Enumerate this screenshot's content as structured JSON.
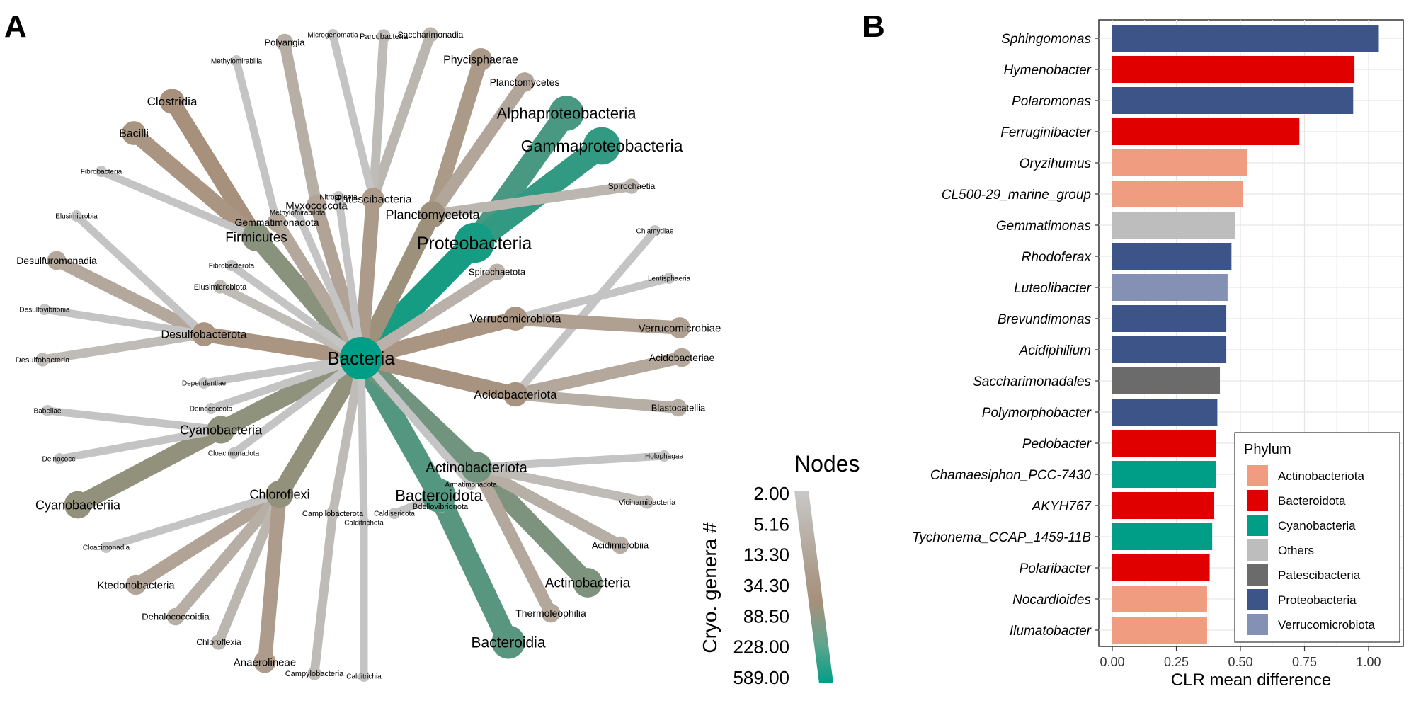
{
  "panels": {
    "a": "A",
    "b": "B"
  },
  "colors": {
    "low": "#bdbdbd",
    "mid": "#a6907b",
    "high": "#009e86",
    "node_fill": "#a59481"
  },
  "network": {
    "root": "Bacteria",
    "legend_title": "Nodes",
    "legend_axis_label": "Cryo. genera #",
    "legend_ticks": [
      "2.00",
      "5.16",
      "13.30",
      "34.30",
      "88.50",
      "228.00",
      "589.00"
    ],
    "phyla": [
      {
        "name": "Proteobacteria",
        "genera": 380,
        "children": [
          {
            "name": "Alphaproteobacteria",
            "genera": 150
          },
          {
            "name": "Gammaproteobacteria",
            "genera": 230
          }
        ]
      },
      {
        "name": "Bacteroidota",
        "genera": 120,
        "children": [
          {
            "name": "Bacteroidia",
            "genera": 110
          },
          {
            "name": "Bdellovibrionota",
            "genera": 3
          },
          {
            "name": "Caldisericota",
            "genera": 2
          }
        ]
      },
      {
        "name": "Actinobacteriota",
        "genera": 70,
        "children": [
          {
            "name": "Actinobacteria",
            "genera": 55
          },
          {
            "name": "Acidimicrobiia",
            "genera": 6
          },
          {
            "name": "Thermoleophilia",
            "genera": 8
          },
          {
            "name": "Vicinamibacteria",
            "genera": 3
          },
          {
            "name": "Holophagae",
            "genera": 2
          }
        ]
      },
      {
        "name": "Firmicutes",
        "genera": 45,
        "children": [
          {
            "name": "Clostridia",
            "genera": 24
          },
          {
            "name": "Bacilli",
            "genera": 20
          },
          {
            "name": "Fibrobacteria",
            "genera": 2
          }
        ]
      },
      {
        "name": "Cyanobacteria",
        "genera": 40,
        "children": [
          {
            "name": "Cyanobacteriia",
            "genera": 38
          },
          {
            "name": "Deinococci",
            "genera": 2
          },
          {
            "name": "Babeliae",
            "genera": 2
          }
        ]
      },
      {
        "name": "Chloroflexi",
        "genera": 38,
        "children": [
          {
            "name": "Ktedonobacteria",
            "genera": 10
          },
          {
            "name": "Dehalococcoidia",
            "genera": 6
          },
          {
            "name": "Chloroflexia",
            "genera": 4
          },
          {
            "name": "Anaerolineae",
            "genera": 14
          },
          {
            "name": "Cloacimonadia",
            "genera": 2
          }
        ]
      },
      {
        "name": "Planctomycetota",
        "genera": 30,
        "children": [
          {
            "name": "Phycisphaerae",
            "genera": 16
          },
          {
            "name": "Planctomycetes",
            "genera": 9
          },
          {
            "name": "Spirochaetia",
            "genera": 4
          }
        ]
      },
      {
        "name": "Desulfobacterota",
        "genera": 20,
        "children": [
          {
            "name": "Desulfuromonadia",
            "genera": 8
          },
          {
            "name": "Desulfovibrionia",
            "genera": 2
          },
          {
            "name": "Desulfobacteria",
            "genera": 3
          },
          {
            "name": "Elusimicrobia",
            "genera": 2
          }
        ]
      },
      {
        "name": "Acidobacteriota",
        "genera": 22,
        "children": [
          {
            "name": "Acidobacteriae",
            "genera": 8
          },
          {
            "name": "Blastocatellia",
            "genera": 6
          },
          {
            "name": "Chlamydiae",
            "genera": 2
          }
        ]
      },
      {
        "name": "Verrucomicrobiota",
        "genera": 20,
        "children": [
          {
            "name": "Verrucomicrobiae",
            "genera": 12
          },
          {
            "name": "Lentisphaeria",
            "genera": 2
          }
        ]
      },
      {
        "name": "Patescibacteria",
        "genera": 15,
        "children": [
          {
            "name": "Saccharimonadia",
            "genera": 4
          },
          {
            "name": "Parcubacteria",
            "genera": 3
          },
          {
            "name": "Microgenomatia",
            "genera": 2
          }
        ]
      },
      {
        "name": "Myxococcota",
        "genera": 10,
        "children": [
          {
            "name": "Polyangia",
            "genera": 6
          }
        ]
      },
      {
        "name": "Gemmatimonadota",
        "genera": 8,
        "children": [
          {
            "name": "Methylomirabilia",
            "genera": 2
          }
        ]
      },
      {
        "name": "Spirochaetota",
        "genera": 5,
        "children": []
      },
      {
        "name": "Elusimicrobiota",
        "genera": 3,
        "children": []
      },
      {
        "name": "Fibrobacterota",
        "genera": 2,
        "children": []
      },
      {
        "name": "Nitrospinota",
        "genera": 2,
        "children": []
      },
      {
        "name": "Methylomirabilota",
        "genera": 2,
        "children": []
      },
      {
        "name": "Dependentiae",
        "genera": 2,
        "children": []
      },
      {
        "name": "Deinococcota",
        "genera": 2,
        "children": []
      },
      {
        "name": "Cloacimonadota",
        "genera": 2,
        "children": []
      },
      {
        "name": "Armatimonadota",
        "genera": 2,
        "children": []
      },
      {
        "name": "Campilobacterota",
        "genera": 3,
        "children": [
          {
            "name": "Campylobacteria",
            "genera": 3
          }
        ]
      },
      {
        "name": "Calditrichota",
        "genera": 2,
        "children": [
          {
            "name": "Calditrichia",
            "genera": 2
          }
        ]
      }
    ]
  },
  "chart_data": {
    "type": "bar",
    "orientation": "horizontal",
    "xlabel": "CLR mean difference",
    "xlim": [
      0,
      1.05
    ],
    "xticks": [
      "0.00",
      "0.25",
      "0.50",
      "0.75",
      "1.00"
    ],
    "legend_title": "Phylum",
    "legend_position": "bottom-right",
    "grid": true,
    "phyla": [
      {
        "name": "Actinobacteriota",
        "color": "#f09c80"
      },
      {
        "name": "Bacteroidota",
        "color": "#e00000"
      },
      {
        "name": "Cyanobacteria",
        "color": "#009e86"
      },
      {
        "name": "Others",
        "color": "#bdbdbd"
      },
      {
        "name": "Patescibacteria",
        "color": "#6b6b6b"
      },
      {
        "name": "Proteobacteria",
        "color": "#3c5488"
      },
      {
        "name": "Verrucomicrobiota",
        "color": "#8491b4"
      }
    ],
    "bars": [
      {
        "genus": "Sphingomonas",
        "value": 1.04,
        "phylum": "Proteobacteria"
      },
      {
        "genus": "Hymenobacter",
        "value": 0.945,
        "phylum": "Bacteroidota"
      },
      {
        "genus": "Polaromonas",
        "value": 0.94,
        "phylum": "Proteobacteria"
      },
      {
        "genus": "Ferruginibacter",
        "value": 0.73,
        "phylum": "Bacteroidota"
      },
      {
        "genus": "Oryzihumus",
        "value": 0.525,
        "phylum": "Actinobacteriota"
      },
      {
        "genus": "CL500-29_marine_group",
        "value": 0.51,
        "phylum": "Actinobacteriota"
      },
      {
        "genus": "Gemmatimonas",
        "value": 0.48,
        "phylum": "Others"
      },
      {
        "genus": "Rhodoferax",
        "value": 0.465,
        "phylum": "Proteobacteria"
      },
      {
        "genus": "Luteolibacter",
        "value": 0.45,
        "phylum": "Verrucomicrobiota"
      },
      {
        "genus": "Brevundimonas",
        "value": 0.445,
        "phylum": "Proteobacteria"
      },
      {
        "genus": "Acidiphilium",
        "value": 0.445,
        "phylum": "Proteobacteria"
      },
      {
        "genus": "Saccharimonadales",
        "value": 0.42,
        "phylum": "Patescibacteria"
      },
      {
        "genus": "Polymorphobacter",
        "value": 0.41,
        "phylum": "Proteobacteria"
      },
      {
        "genus": "Pedobacter",
        "value": 0.405,
        "phylum": "Bacteroidota"
      },
      {
        "genus": "Chamaesiphon_PCC-7430",
        "value": 0.405,
        "phylum": "Cyanobacteria"
      },
      {
        "genus": "AKYH767",
        "value": 0.395,
        "phylum": "Bacteroidota"
      },
      {
        "genus": "Tychonema_CCAP_1459-11B",
        "value": 0.39,
        "phylum": "Cyanobacteria"
      },
      {
        "genus": "Polaribacter",
        "value": 0.38,
        "phylum": "Bacteroidota"
      },
      {
        "genus": "Nocardioides",
        "value": 0.37,
        "phylum": "Actinobacteriota"
      },
      {
        "genus": "Ilumatobacter",
        "value": 0.37,
        "phylum": "Actinobacteriota"
      }
    ]
  }
}
